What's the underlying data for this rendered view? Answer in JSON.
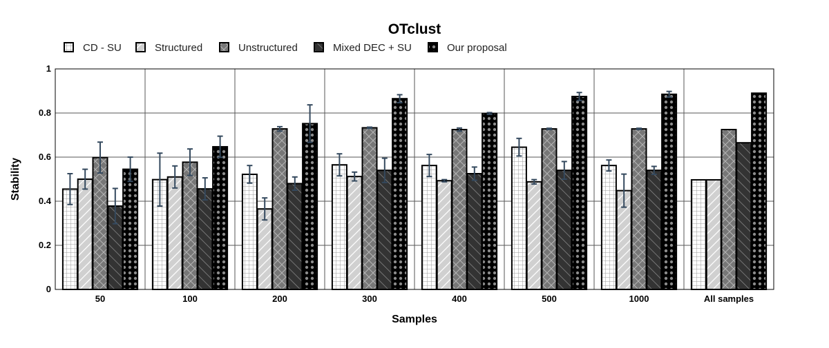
{
  "chart_data": {
    "type": "bar",
    "title": "OTclust",
    "xlabel": "Samples",
    "ylabel": "Stability",
    "ylim": [
      0,
      1
    ],
    "yticks": [
      "0",
      "0.2",
      "0.4",
      "0.6",
      "0.8",
      "1"
    ],
    "grid": true,
    "legend_position": "top-left",
    "categories": [
      "50",
      "100",
      "200",
      "300",
      "400",
      "500",
      "1000",
      "All samples"
    ],
    "series": [
      {
        "name": "CD - SU",
        "pattern": "grid",
        "fill": "#ffffff",
        "values": [
          0.455,
          0.498,
          0.522,
          0.565,
          0.562,
          0.645,
          0.562,
          0.497
        ],
        "errors": [
          0.07,
          0.12,
          0.04,
          0.05,
          0.05,
          0.04,
          0.025,
          0
        ]
      },
      {
        "name": "Structured",
        "pattern": "diagonal",
        "fill": "#d0d0d0",
        "values": [
          0.5,
          0.51,
          0.365,
          0.512,
          0.493,
          0.488,
          0.448,
          0.497
        ],
        "errors": [
          0.045,
          0.05,
          0.05,
          0.02,
          0.005,
          0.01,
          0.075,
          0
        ]
      },
      {
        "name": "Unstructured",
        "pattern": "crosshatch",
        "fill": "#777777",
        "values": [
          0.598,
          0.577,
          0.728,
          0.733,
          0.725,
          0.728,
          0.728,
          0.725
        ],
        "errors": [
          0.07,
          0.06,
          0.01,
          0.003,
          0.007,
          0.003,
          0.003,
          0
        ]
      },
      {
        "name": "Mixed DEC + SU",
        "pattern": "darkdiagonal",
        "fill": "#333333",
        "values": [
          0.378,
          0.456,
          0.48,
          0.54,
          0.525,
          0.54,
          0.54,
          0.665
        ],
        "errors": [
          0.08,
          0.05,
          0.03,
          0.055,
          0.03,
          0.04,
          0.018,
          0
        ]
      },
      {
        "name": "Our proposal",
        "pattern": "dots",
        "fill": "#000000",
        "values": [
          0.545,
          0.647,
          0.752,
          0.865,
          0.798,
          0.875,
          0.885,
          0.89
        ],
        "errors": [
          0.055,
          0.048,
          0.085,
          0.018,
          0.004,
          0.018,
          0.013,
          0
        ]
      }
    ],
    "colors": {
      "error_bar": "#34495e",
      "grid": "#555555",
      "bar_stroke": "#000000"
    }
  }
}
